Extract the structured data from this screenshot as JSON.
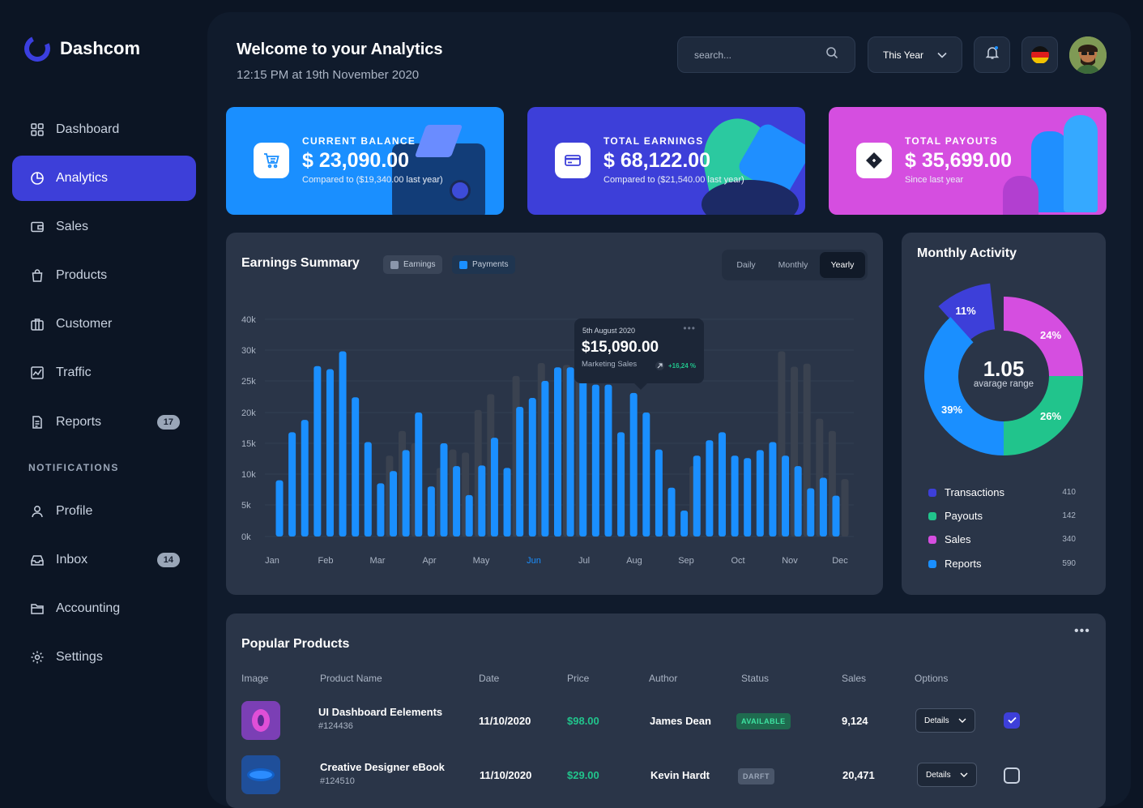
{
  "app": {
    "name": "Dashcom"
  },
  "sidebar": {
    "items": [
      {
        "label": "Dashboard",
        "icon": "grid-icon"
      },
      {
        "label": "Analytics",
        "icon": "pie-chart-icon",
        "active": true
      },
      {
        "label": "Sales",
        "icon": "wallet-icon"
      },
      {
        "label": "Products",
        "icon": "shopping-bag-icon"
      },
      {
        "label": "Customer",
        "icon": "briefcase-icon"
      },
      {
        "label": "Traffic",
        "icon": "line-chart-icon"
      },
      {
        "label": "Reports",
        "icon": "document-icon",
        "badge": "17"
      }
    ],
    "section_label": "NOTIFICATIONS",
    "items2": [
      {
        "label": "Profile",
        "icon": "user-icon"
      },
      {
        "label": "Inbox",
        "icon": "inbox-icon",
        "badge": "14"
      },
      {
        "label": "Accounting",
        "icon": "folder-icon"
      },
      {
        "label": "Settings",
        "icon": "gear-icon"
      }
    ]
  },
  "header": {
    "title": "Welcome to your Analytics",
    "subtitle": "12:15 PM at 19th November 2020",
    "search_placeholder": "search...",
    "period": "This Year"
  },
  "cards": [
    {
      "label": "CURRENT BALANCE",
      "value": "$ 23,090.00",
      "compare": "Compared to ($19,340.00 last year)",
      "color": "#1a8fff",
      "icon": "cart-icon"
    },
    {
      "label": "TOTAL EARNINGS",
      "value": "$ 68,122.00",
      "compare": "Compared to ($21,540.00 last year)",
      "color": "#3d3fd9",
      "icon": "credit-card-icon"
    },
    {
      "label": "TOTAL PAYOUTS",
      "value": "$ 35,699.00",
      "compare": "Since last year",
      "color": "#d54ee0",
      "icon": "ticket-icon"
    }
  ],
  "earnings": {
    "title": "Earnings Summary",
    "legend": [
      {
        "label": "Earnings",
        "color": "#8a96ab"
      },
      {
        "label": "Payments",
        "color": "#1a8fff"
      }
    ],
    "tabs": [
      "Daily",
      "Monthly",
      "Yearly"
    ],
    "active_tab": "Yearly",
    "tooltip": {
      "date": "5th August 2020",
      "value": "$15,090.00",
      "label": "Marketing Sales",
      "change": "+16,24 %"
    }
  },
  "chart_data": {
    "type": "bar",
    "yticks": [
      "40k",
      "30k",
      "25k",
      "20k",
      "15k",
      "10k",
      "5k",
      "0k"
    ],
    "ylim": [
      0,
      40000
    ],
    "xticks": [
      "Jan",
      "Feb",
      "Mar",
      "Apr",
      "May",
      "Jun",
      "Jul",
      "Aug",
      "Sep",
      "Oct",
      "Nov",
      "Dec"
    ],
    "highlight_tick": "Jun",
    "series": [
      {
        "name": "Payments",
        "color": "#1a8fff",
        "values": [
          9000,
          16800,
          18800,
          27400,
          26900,
          29800,
          22400,
          15200,
          8500,
          10500,
          13900,
          20000,
          8000,
          15000,
          11300,
          6600,
          11400,
          15900,
          11000,
          20900,
          22300,
          25000,
          27200,
          27200,
          25000,
          24400,
          24400,
          16800,
          23100,
          20000,
          14000,
          7800,
          4100,
          13000,
          15500,
          16800,
          13000,
          12600,
          13900,
          15200,
          13000,
          11300,
          7700,
          9400,
          6500
        ]
      },
      {
        "name": "Earnings",
        "color": "#3a4250",
        "values": [
          0,
          0,
          0,
          0,
          0,
          0,
          0,
          0,
          13000,
          17000,
          15000,
          0,
          11000,
          14000,
          13500,
          20400,
          22900,
          0,
          25800,
          0,
          27900,
          0,
          27600,
          29000,
          0,
          0,
          0,
          0,
          0,
          0,
          0,
          0,
          11300,
          0,
          0,
          0,
          0,
          0,
          0,
          29800,
          27300,
          27800,
          19000,
          17000,
          9200
        ]
      }
    ]
  },
  "activity": {
    "title": "Monthly Activity",
    "center_value": "1.05",
    "center_label": "avarage range",
    "slices": [
      {
        "label": "Transactions",
        "percent": "11%",
        "value": 11,
        "count": "410",
        "color": "#3d3fd9"
      },
      {
        "label": "Payouts",
        "percent": "26%",
        "value": 26,
        "count": "142",
        "color": "#21c48c"
      },
      {
        "label": "Sales",
        "percent": "24%",
        "value": 24,
        "count": "340",
        "color": "#d54ee0"
      },
      {
        "label": "Reports",
        "percent": "39%",
        "value": 39,
        "count": "590",
        "color": "#1a8fff"
      }
    ]
  },
  "products": {
    "title": "Popular Products",
    "columns": [
      "Image",
      "Product Name",
      "Date",
      "Price",
      "Author",
      "Status",
      "Sales",
      "Options"
    ],
    "rows": [
      {
        "name": "UI Dashboard Eelements",
        "id": "#124436",
        "date": "11/10/2020",
        "price": "$98.00",
        "author": "James Dean",
        "status": "AVAILABLE",
        "sales": "9,124",
        "option": "Details",
        "checked": true
      },
      {
        "name": "Creative Designer eBook",
        "id": "#124510",
        "date": "11/10/2020",
        "price": "$29.00",
        "author": "Kevin Hardt",
        "status": "DARFT",
        "sales": "20,471",
        "option": "Details",
        "checked": false
      }
    ]
  }
}
